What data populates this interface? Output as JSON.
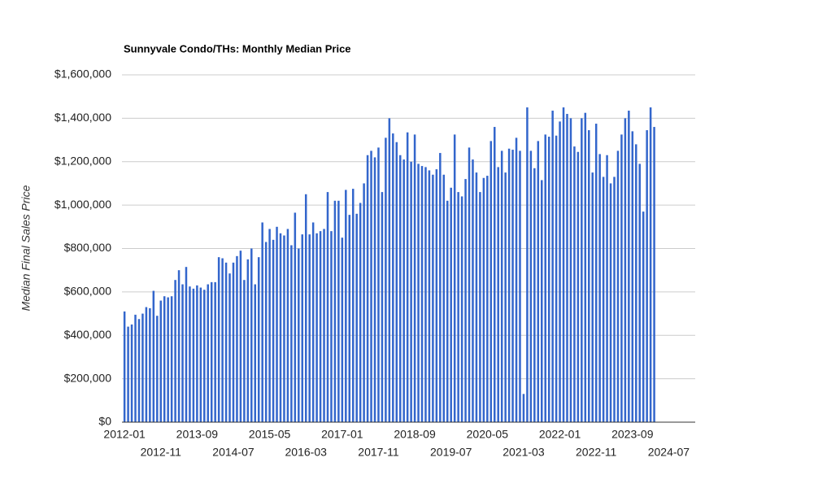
{
  "chart_data": {
    "type": "bar",
    "title": "Sunnyvale Condo/THs: Monthly Median Price",
    "ylabel": "Median Final Sales Price",
    "color": "#3366cc",
    "grid": true,
    "ylim": [
      0,
      1600000
    ],
    "yticks": [
      {
        "value": 0,
        "label": "$0"
      },
      {
        "value": 200000,
        "label": "$200,000"
      },
      {
        "value": 400000,
        "label": "$400,000"
      },
      {
        "value": 600000,
        "label": "$600,000"
      },
      {
        "value": 800000,
        "label": "$800,000"
      },
      {
        "value": 1000000,
        "label": "$1,000,000"
      },
      {
        "value": 1200000,
        "label": "$1,200,000"
      },
      {
        "value": 1400000,
        "label": "$1,400,000"
      },
      {
        "value": 1600000,
        "label": "$1,600,000"
      }
    ],
    "categories": [
      "2012-01",
      null,
      null,
      null,
      null,
      null,
      null,
      null,
      null,
      null,
      "2012-11",
      null,
      null,
      null,
      null,
      null,
      null,
      null,
      null,
      null,
      "2013-09",
      null,
      null,
      null,
      null,
      null,
      null,
      null,
      null,
      null,
      "2014-07",
      null,
      null,
      null,
      null,
      null,
      null,
      null,
      null,
      null,
      "2015-05",
      null,
      null,
      null,
      null,
      null,
      null,
      null,
      null,
      null,
      "2016-03",
      null,
      null,
      null,
      null,
      null,
      null,
      null,
      null,
      null,
      "2017-01",
      null,
      null,
      null,
      null,
      null,
      null,
      null,
      null,
      null,
      "2017-11",
      null,
      null,
      null,
      null,
      null,
      null,
      null,
      null,
      null,
      "2018-09",
      null,
      null,
      null,
      null,
      null,
      null,
      null,
      null,
      null,
      "2019-07",
      null,
      null,
      null,
      null,
      null,
      null,
      null,
      null,
      null,
      "2020-05",
      null,
      null,
      null,
      null,
      null,
      null,
      null,
      null,
      null,
      "2021-03",
      null,
      null,
      null,
      null,
      null,
      null,
      null,
      null,
      null,
      "2022-01",
      null,
      null,
      null,
      null,
      null,
      null,
      null,
      null,
      null,
      "2022-11",
      null,
      null,
      null,
      null,
      null,
      null,
      null,
      null,
      null,
      "2023-09",
      null,
      null,
      null,
      null,
      null,
      null,
      null,
      null,
      null,
      "2024-07"
    ],
    "values": [
      510000,
      440000,
      450000,
      495000,
      475000,
      500000,
      530000,
      525000,
      605000,
      490000,
      560000,
      580000,
      575000,
      580000,
      655000,
      700000,
      635000,
      715000,
      625000,
      615000,
      630000,
      620000,
      610000,
      635000,
      645000,
      645000,
      760000,
      755000,
      735000,
      685000,
      735000,
      765000,
      790000,
      655000,
      750000,
      800000,
      635000,
      760000,
      920000,
      830000,
      890000,
      840000,
      900000,
      870000,
      860000,
      890000,
      815000,
      965000,
      800000,
      865000,
      1050000,
      865000,
      920000,
      870000,
      880000,
      890000,
      1060000,
      880000,
      1020000,
      1020000,
      850000,
      1070000,
      955000,
      1075000,
      960000,
      1010000,
      1100000,
      1230000,
      1250000,
      1220000,
      1265000,
      1060000,
      1310000,
      1400000,
      1330000,
      1290000,
      1230000,
      1210000,
      1335000,
      1200000,
      1325000,
      1190000,
      1180000,
      1175000,
      1160000,
      1140000,
      1165000,
      1240000,
      1140000,
      1020000,
      1080000,
      1325000,
      1060000,
      1040000,
      1120000,
      1265000,
      1210000,
      1150000,
      1060000,
      1125000,
      1135000,
      1295000,
      1360000,
      1175000,
      1250000,
      1150000,
      1260000,
      1255000,
      1310000,
      1250000,
      130000,
      1450000,
      1250000,
      1170000,
      1295000,
      1115000,
      1325000,
      1315000,
      1435000,
      1320000,
      1385000,
      1450000,
      1420000,
      1400000,
      1270000,
      1245000,
      1400000,
      1425000,
      1345000,
      1150000,
      1375000,
      1235000,
      1130000,
      1230000,
      1100000,
      1130000,
      1250000,
      1325000,
      1400000,
      1435000,
      1340000,
      1280000,
      1190000,
      970000,
      1345000,
      1450000,
      1360000,
      null,
      null,
      null,
      null
    ]
  }
}
